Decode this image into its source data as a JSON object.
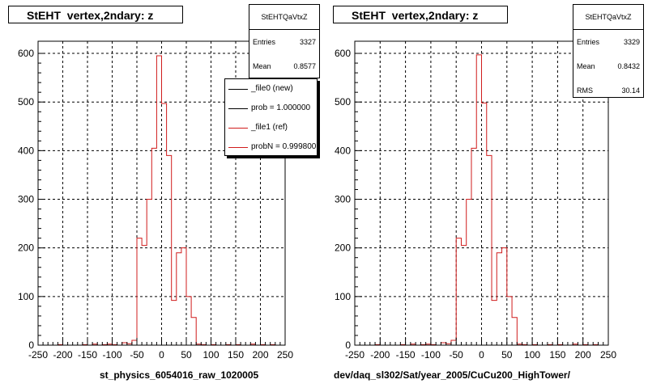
{
  "colors": {
    "ref_hist": "#d01c1c",
    "new_hist": "#000000",
    "frame": "#000000",
    "grid": "#000000"
  },
  "left_pad": {
    "title": "StEHT  vertex,2ndary: z",
    "stats": {
      "name": "StEHTQaVtxZ",
      "rows": [
        {
          "label": "Entries",
          "value": "3327"
        },
        {
          "label": "Mean",
          "value": "0.8577"
        }
      ]
    },
    "legend": [
      {
        "label": "_file0 (new)",
        "color": "#000000"
      },
      {
        "label": "prob = 1.000000",
        "color": "#000000"
      },
      {
        "label": "_file1 (ref)",
        "color": "#d01c1c"
      },
      {
        "label": "probN = 0.999800",
        "color": "#d01c1c"
      }
    ],
    "xcaption": "st_physics_6054016_raw_1020005"
  },
  "right_pad": {
    "title": "StEHT  vertex,2ndary: z",
    "stats": {
      "name": "StEHTQaVtxZ",
      "rows": [
        {
          "label": "Entries",
          "value": "3329"
        },
        {
          "label": "Mean",
          "value": "0.8432"
        },
        {
          "label": "RMS",
          "value": "30.14"
        }
      ]
    },
    "xcaption": "dev/daq_sl302/Sat/year_2005/CuCu200_HighTower/"
  },
  "chart_data": [
    {
      "type": "histogram",
      "title": "StEHT  vertex,2ndary: z",
      "xlim": [
        -250,
        250
      ],
      "ylim": [
        0,
        625
      ],
      "xticks": [
        -250,
        -200,
        -150,
        -100,
        -50,
        0,
        50,
        100,
        150,
        200,
        250
      ],
      "yticks": [
        0,
        100,
        200,
        300,
        400,
        500,
        600
      ],
      "grid": true,
      "legend_position": "top-right",
      "bin_edges": [
        -250,
        -240,
        -230,
        -220,
        -210,
        -200,
        -190,
        -180,
        -170,
        -160,
        -150,
        -140,
        -130,
        -120,
        -110,
        -100,
        -90,
        -80,
        -70,
        -60,
        -50,
        -40,
        -30,
        -20,
        -10,
        0,
        10,
        20,
        30,
        40,
        50,
        60,
        70,
        80,
        90,
        100,
        110,
        120,
        130,
        140,
        150,
        160,
        170,
        180,
        190,
        200,
        210,
        220,
        230,
        240,
        250
      ],
      "series": [
        {
          "name": "_file1 (ref)",
          "values": [
            0,
            0,
            0,
            0,
            1,
            0,
            0,
            0,
            0,
            1,
            0,
            2,
            0,
            1,
            2,
            1,
            0,
            5,
            3,
            10,
            220,
            205,
            300,
            405,
            595,
            497,
            390,
            92,
            190,
            200,
            100,
            57,
            2,
            1,
            0,
            1,
            0,
            0,
            1,
            0,
            1,
            0,
            0,
            2,
            0,
            1,
            0,
            1,
            0,
            0
          ]
        }
      ]
    },
    {
      "type": "histogram",
      "title": "StEHT  vertex,2ndary: z",
      "xlim": [
        -250,
        250
      ],
      "ylim": [
        0,
        625
      ],
      "xticks": [
        -250,
        -200,
        -150,
        -100,
        -50,
        0,
        50,
        100,
        150,
        200,
        250
      ],
      "yticks": [
        0,
        100,
        200,
        300,
        400,
        500,
        600
      ],
      "grid": true,
      "bin_edges": [
        -250,
        -240,
        -230,
        -220,
        -210,
        -200,
        -190,
        -180,
        -170,
        -160,
        -150,
        -140,
        -130,
        -120,
        -110,
        -100,
        -90,
        -80,
        -70,
        -60,
        -50,
        -40,
        -30,
        -20,
        -10,
        0,
        10,
        20,
        30,
        40,
        50,
        60,
        70,
        80,
        90,
        100,
        110,
        120,
        130,
        140,
        150,
        160,
        170,
        180,
        190,
        200,
        210,
        220,
        230,
        240,
        250
      ],
      "series": [
        {
          "name": "",
          "values": [
            0,
            0,
            0,
            0,
            1,
            0,
            0,
            0,
            0,
            1,
            0,
            2,
            0,
            1,
            2,
            1,
            0,
            5,
            3,
            10,
            220,
            205,
            300,
            405,
            597,
            498,
            390,
            92,
            190,
            200,
            100,
            57,
            2,
            1,
            0,
            1,
            0,
            0,
            1,
            0,
            1,
            0,
            0,
            2,
            0,
            1,
            0,
            1,
            0,
            0
          ]
        }
      ]
    }
  ]
}
